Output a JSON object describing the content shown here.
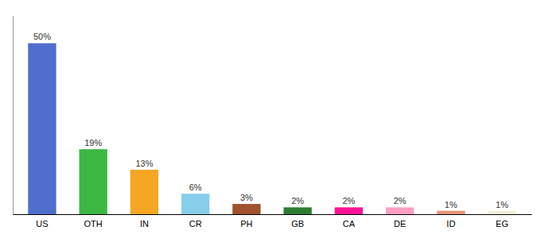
{
  "chart_data": {
    "type": "bar",
    "categories": [
      "US",
      "OTH",
      "IN",
      "CR",
      "PH",
      "GB",
      "CA",
      "DE",
      "ID",
      "EG"
    ],
    "values": [
      50,
      19,
      13,
      6,
      3,
      2,
      2,
      2,
      1,
      1
    ],
    "value_labels": [
      "50%",
      "19%",
      "13%",
      "6%",
      "3%",
      "2%",
      "2%",
      "2%",
      "1%",
      "1%"
    ],
    "colors": [
      "#4F6ECD",
      "#3CB842",
      "#F5A623",
      "#87CEEB",
      "#A0522D",
      "#2E7D32",
      "#FF1493",
      "#FF9EC4",
      "#E8967A",
      "#F5F0DC"
    ],
    "ylim": [
      0,
      58
    ],
    "data_labels": true,
    "tick_labels": "x"
  }
}
